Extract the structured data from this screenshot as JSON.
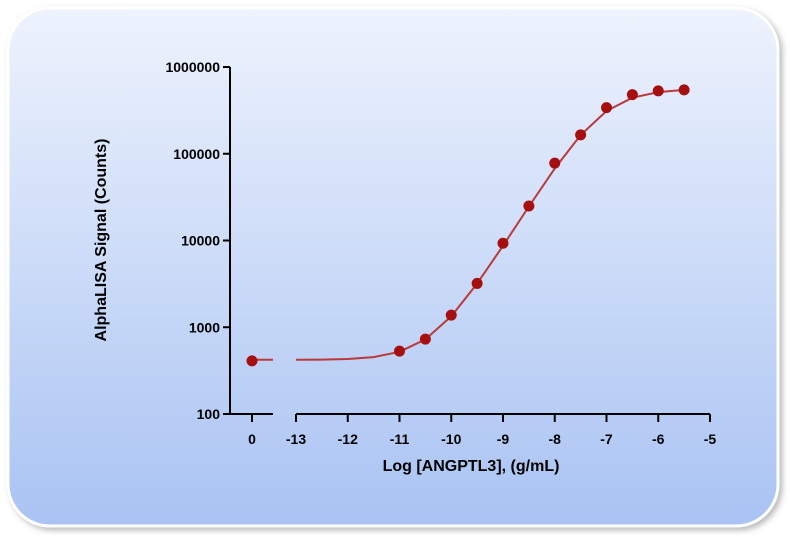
{
  "chart_data": {
    "type": "scatter",
    "x_label": "Log [ANGPTL3], (g/mL)",
    "y_label": "AlphaLISA Signal (Counts)",
    "yscale": "log",
    "ylim": [
      100,
      1000000
    ],
    "yticks": [
      100,
      1000,
      10000,
      100000,
      1000000
    ],
    "x_segments": [
      {
        "xlim": [
          -0.4,
          0.4
        ],
        "xticks": [
          0
        ]
      },
      {
        "xlim": [
          -13,
          -5
        ],
        "xticks": [
          -13,
          -12,
          -11,
          -10,
          -9,
          -8,
          -7,
          -6,
          -5
        ]
      }
    ],
    "color": "#a50f0f",
    "curve_color": "#b83a3a",
    "x": [
      0,
      -11,
      -10.5,
      -10,
      -9.5,
      -9,
      -8.5,
      -8,
      -7.5,
      -7,
      -6.5,
      -6,
      -5.5
    ],
    "values": [
      410,
      530,
      730,
      1380,
      3200,
      9300,
      25000,
      78000,
      165000,
      340000,
      480000,
      530000,
      545000
    ],
    "curves": [
      {
        "x": [
          0,
          0.4
        ],
        "values": [
          421,
          421
        ]
      },
      {
        "x": [
          -13,
          -12.5,
          -12,
          -11.5,
          -11,
          -10.5,
          -10,
          -9.5,
          -9,
          -8.5,
          -8,
          -7.5,
          -7,
          -6.5,
          -6,
          -5.5
        ],
        "values": [
          421,
          424,
          431,
          453,
          521,
          725,
          1339,
          3185,
          8690,
          24665,
          67750,
          164000,
          311300,
          442600,
          514000,
          544000
        ]
      }
    ]
  }
}
